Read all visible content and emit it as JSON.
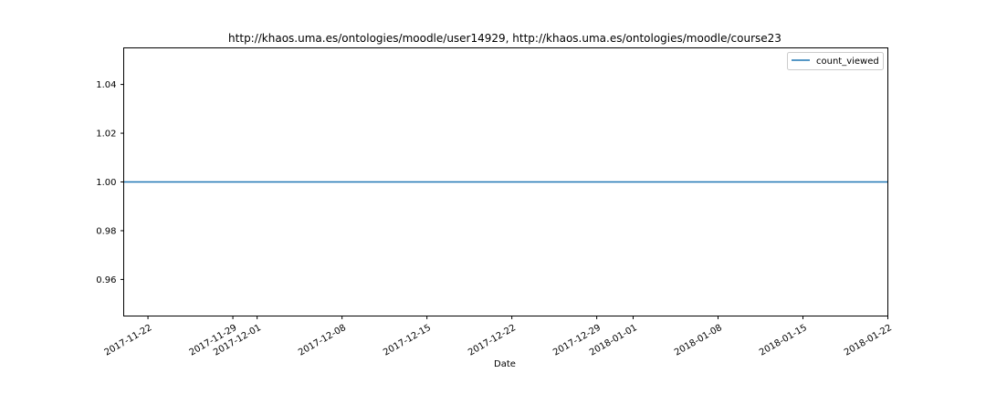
{
  "chart_data": {
    "type": "line",
    "title": "http://khaos.uma.es/ontologies/moodle/user14929, http://khaos.uma.es/ontologies/moodle/course23",
    "xlabel": "Date",
    "ylabel": "",
    "x_type": "date",
    "xlim": [
      "2017-11-20",
      "2018-01-22"
    ],
    "ylim": [
      0.945,
      1.055
    ],
    "x_ticks": [
      "2017-11-22",
      "2017-11-29",
      "2017-12-01",
      "2017-12-08",
      "2017-12-15",
      "2017-12-22",
      "2017-12-29",
      "2018-01-01",
      "2018-01-08",
      "2018-01-15",
      "2018-01-22"
    ],
    "y_ticks": [
      "0.96",
      "0.98",
      "1.00",
      "1.02",
      "1.04"
    ],
    "grid": false,
    "legend_position": "top-right",
    "series": [
      {
        "name": "count_viewed",
        "color": "#1f77b4",
        "x": [
          "2017-11-20",
          "2018-01-22"
        ],
        "y": [
          1.0,
          1.0
        ]
      }
    ]
  }
}
